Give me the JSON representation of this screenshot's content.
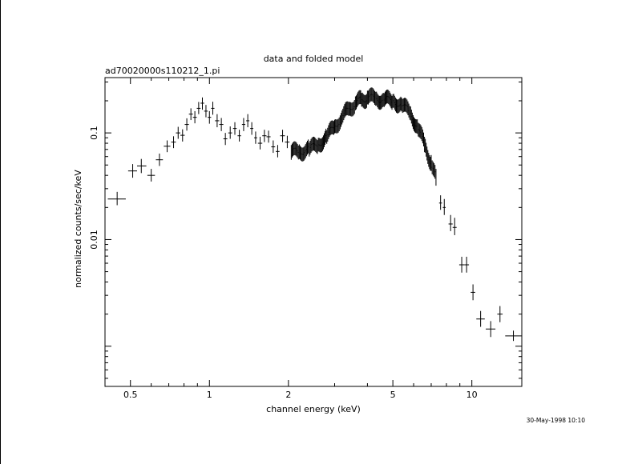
{
  "chart_data": {
    "type": "scatter",
    "title": "data and folded model",
    "subtitle": "ad70020000s110212_1.pi",
    "xlabel": "channel energy (keV)",
    "ylabel": "normalized counts/sec/keV",
    "xscale": "log",
    "yscale": "log",
    "xlim": [
      0.4,
      15.5
    ],
    "ylim": [
      0.00042,
      0.33
    ],
    "grid": false,
    "x_ticks": [
      {
        "value": 0.5,
        "label": "0.5"
      },
      {
        "value": 1,
        "label": "1"
      },
      {
        "value": 2,
        "label": "2"
      },
      {
        "value": 5,
        "label": "5"
      },
      {
        "value": 10,
        "label": "10"
      }
    ],
    "y_ticks": [
      {
        "value": 0.1,
        "label": "0.1"
      },
      {
        "value": 0.01,
        "label": "0.01"
      }
    ],
    "series": [
      {
        "style": "crosses with error bars",
        "points": [
          {
            "x": 0.445,
            "y": 0.024,
            "xlo": 0.41,
            "xhi": 0.48,
            "ylo": 0.021,
            "yhi": 0.028
          },
          {
            "x": 0.51,
            "y": 0.044,
            "xlo": 0.49,
            "xhi": 0.53,
            "ylo": 0.038,
            "yhi": 0.051
          },
          {
            "x": 0.55,
            "y": 0.049,
            "xlo": 0.53,
            "xhi": 0.575,
            "ylo": 0.042,
            "yhi": 0.057
          },
          {
            "x": 0.6,
            "y": 0.04,
            "xlo": 0.58,
            "xhi": 0.62,
            "ylo": 0.035,
            "yhi": 0.046
          },
          {
            "x": 0.645,
            "y": 0.056,
            "xlo": 0.625,
            "xhi": 0.665,
            "ylo": 0.049,
            "yhi": 0.064
          },
          {
            "x": 0.69,
            "y": 0.075,
            "xlo": 0.67,
            "xhi": 0.71,
            "ylo": 0.066,
            "yhi": 0.085
          },
          {
            "x": 0.73,
            "y": 0.082,
            "xlo": 0.715,
            "xhi": 0.745,
            "ylo": 0.072,
            "yhi": 0.093
          },
          {
            "x": 0.76,
            "y": 0.1,
            "xlo": 0.745,
            "xhi": 0.775,
            "ylo": 0.088,
            "yhi": 0.114
          },
          {
            "x": 0.79,
            "y": 0.095,
            "xlo": 0.775,
            "xhi": 0.805,
            "ylo": 0.083,
            "yhi": 0.108
          },
          {
            "x": 0.82,
            "y": 0.12,
            "xlo": 0.805,
            "xhi": 0.835,
            "ylo": 0.105,
            "yhi": 0.137
          },
          {
            "x": 0.85,
            "y": 0.15,
            "xlo": 0.835,
            "xhi": 0.865,
            "ylo": 0.132,
            "yhi": 0.17
          },
          {
            "x": 0.88,
            "y": 0.14,
            "xlo": 0.865,
            "xhi": 0.895,
            "ylo": 0.123,
            "yhi": 0.16
          },
          {
            "x": 0.91,
            "y": 0.17,
            "xlo": 0.895,
            "xhi": 0.925,
            "ylo": 0.15,
            "yhi": 0.195
          },
          {
            "x": 0.94,
            "y": 0.19,
            "xlo": 0.925,
            "xhi": 0.955,
            "ylo": 0.165,
            "yhi": 0.215
          },
          {
            "x": 0.97,
            "y": 0.16,
            "xlo": 0.955,
            "xhi": 0.985,
            "ylo": 0.14,
            "yhi": 0.183
          },
          {
            "x": 1.0,
            "y": 0.14,
            "xlo": 0.985,
            "xhi": 1.015,
            "ylo": 0.122,
            "yhi": 0.16
          },
          {
            "x": 1.03,
            "y": 0.17,
            "xlo": 1.015,
            "xhi": 1.045,
            "ylo": 0.148,
            "yhi": 0.196
          },
          {
            "x": 1.07,
            "y": 0.13,
            "xlo": 1.05,
            "xhi": 1.09,
            "ylo": 0.113,
            "yhi": 0.15
          },
          {
            "x": 1.11,
            "y": 0.12,
            "xlo": 1.09,
            "xhi": 1.13,
            "ylo": 0.104,
            "yhi": 0.138
          },
          {
            "x": 1.15,
            "y": 0.088,
            "xlo": 1.13,
            "xhi": 1.17,
            "ylo": 0.077,
            "yhi": 0.1
          },
          {
            "x": 1.2,
            "y": 0.1,
            "xlo": 1.18,
            "xhi": 1.22,
            "ylo": 0.088,
            "yhi": 0.115
          },
          {
            "x": 1.25,
            "y": 0.11,
            "xlo": 1.23,
            "xhi": 1.27,
            "ylo": 0.096,
            "yhi": 0.126
          },
          {
            "x": 1.3,
            "y": 0.094,
            "xlo": 1.28,
            "xhi": 1.32,
            "ylo": 0.083,
            "yhi": 0.107
          },
          {
            "x": 1.35,
            "y": 0.12,
            "xlo": 1.33,
            "xhi": 1.37,
            "ylo": 0.104,
            "yhi": 0.138
          },
          {
            "x": 1.4,
            "y": 0.13,
            "xlo": 1.38,
            "xhi": 1.42,
            "ylo": 0.113,
            "yhi": 0.15
          },
          {
            "x": 1.45,
            "y": 0.11,
            "xlo": 1.43,
            "xhi": 1.47,
            "ylo": 0.096,
            "yhi": 0.126
          },
          {
            "x": 1.5,
            "y": 0.09,
            "xlo": 1.48,
            "xhi": 1.52,
            "ylo": 0.079,
            "yhi": 0.103
          },
          {
            "x": 1.56,
            "y": 0.08,
            "xlo": 1.53,
            "xhi": 1.59,
            "ylo": 0.07,
            "yhi": 0.092
          },
          {
            "x": 1.62,
            "y": 0.094,
            "xlo": 1.59,
            "xhi": 1.65,
            "ylo": 0.082,
            "yhi": 0.107
          },
          {
            "x": 1.68,
            "y": 0.092,
            "xlo": 1.65,
            "xhi": 1.71,
            "ylo": 0.081,
            "yhi": 0.105
          },
          {
            "x": 1.75,
            "y": 0.074,
            "xlo": 1.72,
            "xhi": 1.78,
            "ylo": 0.065,
            "yhi": 0.085
          },
          {
            "x": 1.82,
            "y": 0.067,
            "xlo": 1.79,
            "xhi": 1.85,
            "ylo": 0.059,
            "yhi": 0.077
          },
          {
            "x": 1.9,
            "y": 0.094,
            "xlo": 1.86,
            "xhi": 1.94,
            "ylo": 0.082,
            "yhi": 0.107
          },
          {
            "x": 1.98,
            "y": 0.082,
            "xlo": 1.94,
            "xhi": 2.02,
            "ylo": 0.072,
            "yhi": 0.094
          }
        ]
      },
      {
        "style": "dense error-bar band",
        "points": [
          {
            "x": 2.05,
            "y": 0.066,
            "ylo": 0.056,
            "yhi": 0.077
          },
          {
            "x": 2.2,
            "y": 0.067,
            "ylo": 0.057,
            "yhi": 0.078
          },
          {
            "x": 2.4,
            "y": 0.07,
            "ylo": 0.06,
            "yhi": 0.081
          },
          {
            "x": 2.6,
            "y": 0.078,
            "ylo": 0.067,
            "yhi": 0.09
          },
          {
            "x": 2.8,
            "y": 0.092,
            "ylo": 0.079,
            "yhi": 0.106
          },
          {
            "x": 3.0,
            "y": 0.115,
            "ylo": 0.099,
            "yhi": 0.133
          },
          {
            "x": 3.2,
            "y": 0.14,
            "ylo": 0.12,
            "yhi": 0.162
          },
          {
            "x": 3.4,
            "y": 0.168,
            "ylo": 0.144,
            "yhi": 0.194
          },
          {
            "x": 3.6,
            "y": 0.19,
            "ylo": 0.163,
            "yhi": 0.22
          },
          {
            "x": 3.8,
            "y": 0.205,
            "ylo": 0.176,
            "yhi": 0.237
          },
          {
            "x": 4.0,
            "y": 0.215,
            "ylo": 0.185,
            "yhi": 0.249
          },
          {
            "x": 4.3,
            "y": 0.21,
            "ylo": 0.18,
            "yhi": 0.243
          },
          {
            "x": 4.6,
            "y": 0.205,
            "ylo": 0.176,
            "yhi": 0.237
          },
          {
            "x": 5.0,
            "y": 0.2,
            "ylo": 0.172,
            "yhi": 0.231
          },
          {
            "x": 5.4,
            "y": 0.185,
            "ylo": 0.159,
            "yhi": 0.214
          },
          {
            "x": 5.8,
            "y": 0.155,
            "ylo": 0.133,
            "yhi": 0.179
          },
          {
            "x": 6.2,
            "y": 0.115,
            "ylo": 0.098,
            "yhi": 0.134
          },
          {
            "x": 6.6,
            "y": 0.078,
            "ylo": 0.066,
            "yhi": 0.092
          },
          {
            "x": 7.0,
            "y": 0.052,
            "ylo": 0.044,
            "yhi": 0.062
          },
          {
            "x": 7.3,
            "y": 0.038,
            "ylo": 0.032,
            "yhi": 0.046
          }
        ]
      },
      {
        "style": "crosses with error bars",
        "points": [
          {
            "x": 7.6,
            "y": 0.022,
            "xlo": 7.5,
            "xhi": 7.7,
            "ylo": 0.019,
            "yhi": 0.026
          },
          {
            "x": 7.85,
            "y": 0.02,
            "xlo": 7.75,
            "xhi": 7.95,
            "ylo": 0.017,
            "yhi": 0.024
          },
          {
            "x": 8.3,
            "y": 0.014,
            "xlo": 8.15,
            "xhi": 8.45,
            "ylo": 0.012,
            "yhi": 0.017
          },
          {
            "x": 8.6,
            "y": 0.013,
            "xlo": 8.45,
            "xhi": 8.75,
            "ylo": 0.011,
            "yhi": 0.016
          },
          {
            "x": 9.15,
            "y": 0.0058,
            "xlo": 8.95,
            "xhi": 9.35,
            "ylo": 0.0049,
            "yhi": 0.0069
          },
          {
            "x": 9.55,
            "y": 0.0058,
            "xlo": 9.35,
            "xhi": 9.75,
            "ylo": 0.0049,
            "yhi": 0.0069
          },
          {
            "x": 10.1,
            "y": 0.0032,
            "xlo": 9.9,
            "xhi": 10.3,
            "ylo": 0.0027,
            "yhi": 0.0038
          },
          {
            "x": 10.8,
            "y": 0.0018,
            "xlo": 10.4,
            "xhi": 11.2,
            "ylo": 0.00152,
            "yhi": 0.00214
          },
          {
            "x": 11.8,
            "y": 0.00145,
            "xlo": 11.3,
            "xhi": 12.3,
            "ylo": 0.00122,
            "yhi": 0.00172
          },
          {
            "x": 12.8,
            "y": 0.002,
            "xlo": 12.5,
            "xhi": 13.1,
            "ylo": 0.00168,
            "yhi": 0.00238
          },
          {
            "x": 14.4,
            "y": 0.00125,
            "xlo": 13.4,
            "xhi": 15.5,
            "ylo": 0.00112,
            "yhi": 0.0014
          }
        ]
      }
    ]
  },
  "timestamp": "30-May-1998 10:10"
}
